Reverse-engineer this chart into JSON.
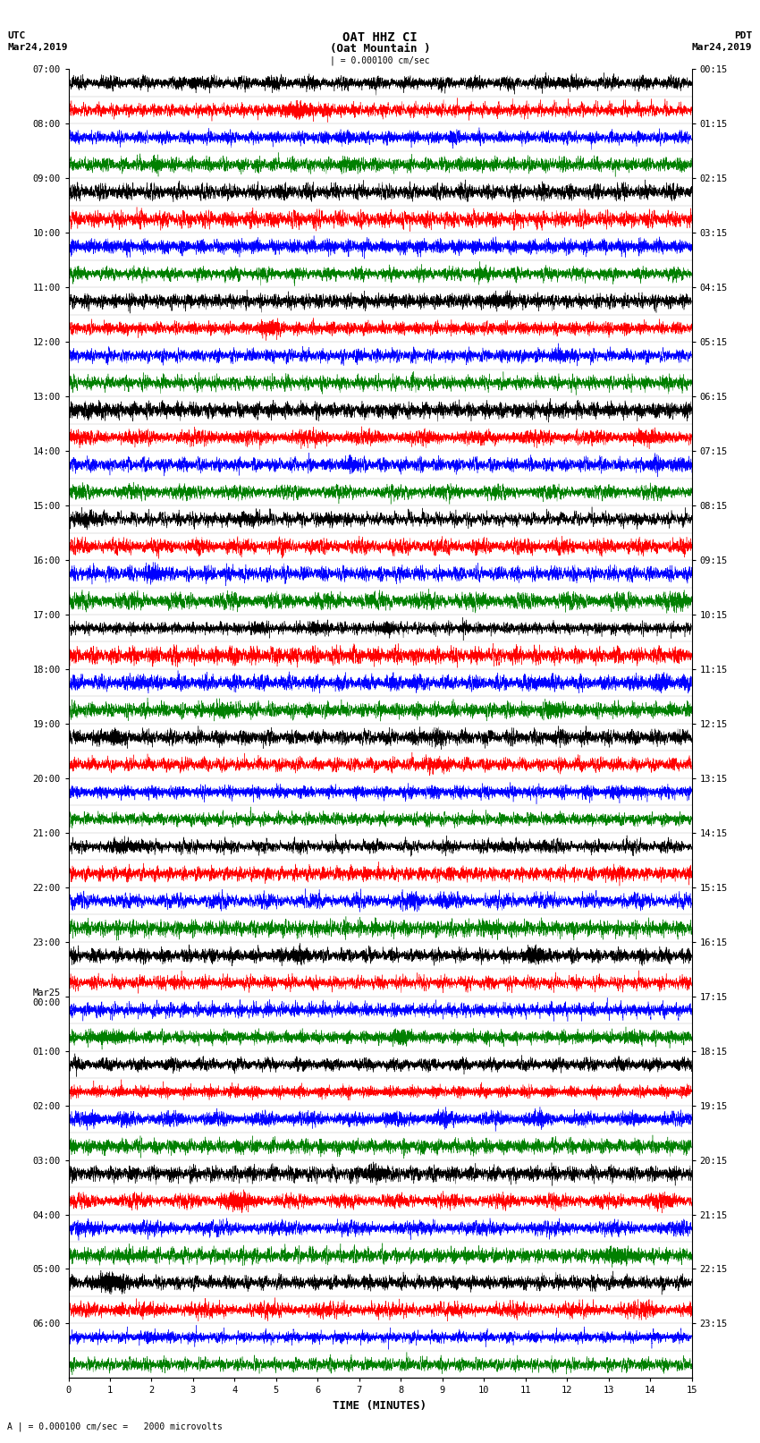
{
  "title_line1": "OAT HHZ CI",
  "title_line2": "(Oat Mountain )",
  "scale_label": "| = 0.000100 cm/sec",
  "utc_label": "UTC",
  "utc_date": "Mar24,2019",
  "pdt_label": "PDT",
  "pdt_date": "Mar24,2019",
  "bottom_label": "A | = 0.000100 cm/sec =   2000 microvolts",
  "xlabel": "TIME (MINUTES)",
  "left_times": [
    "07:00",
    "08:00",
    "09:00",
    "10:00",
    "11:00",
    "12:00",
    "13:00",
    "14:00",
    "15:00",
    "16:00",
    "17:00",
    "18:00",
    "19:00",
    "20:00",
    "21:00",
    "22:00",
    "23:00",
    "Mar25\n00:00",
    "01:00",
    "02:00",
    "03:00",
    "04:00",
    "05:00",
    "06:00"
  ],
  "right_times": [
    "00:15",
    "01:15",
    "02:15",
    "03:15",
    "04:15",
    "05:15",
    "06:15",
    "07:15",
    "08:15",
    "09:15",
    "10:15",
    "11:15",
    "12:15",
    "13:15",
    "14:15",
    "15:15",
    "16:15",
    "17:15",
    "18:15",
    "19:15",
    "20:15",
    "21:15",
    "22:15",
    "23:15"
  ],
  "n_rows": 48,
  "n_points": 9000,
  "time_max": 15,
  "colors": [
    "black",
    "red",
    "blue",
    "green"
  ],
  "background_color": "white",
  "trace_amplitude": 0.45,
  "fig_width": 8.5,
  "fig_height": 16.13,
  "dpi": 100,
  "title_fontsize": 10,
  "label_fontsize": 8,
  "tick_fontsize": 7.5,
  "font_family": "monospace"
}
